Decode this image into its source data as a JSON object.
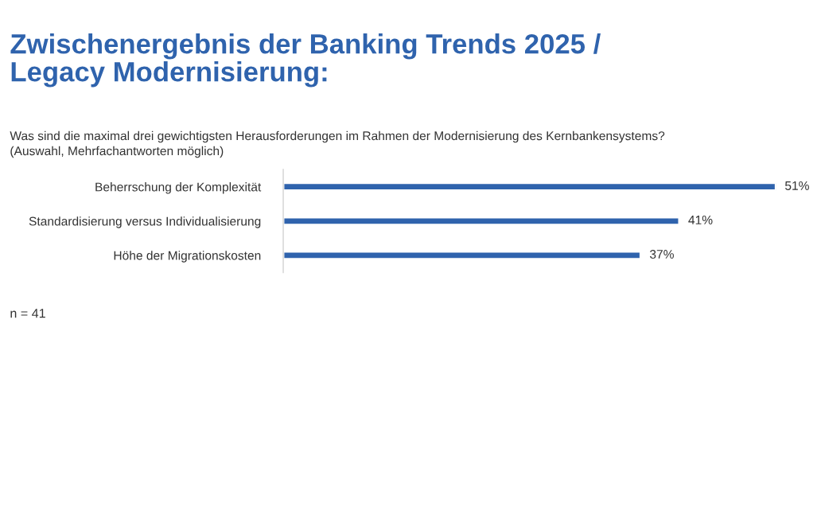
{
  "chart_data": {
    "type": "bar",
    "orientation": "horizontal",
    "title": "Zwischenergebnis der Banking Trends 2025 /\nLegacy Modernisierung:",
    "subtitle": "Was sind die maximal drei gewichtigsten Herausforderungen im Rahmen der Modernisierung des Kernbankensystems?\n(Auswahl, Mehrfachantworten möglich)",
    "categories": [
      "Beherrschung der Komplexität",
      "Standardisierung versus Individualisierung",
      "Höhe der Migrationskosten"
    ],
    "values": [
      51,
      41,
      37
    ],
    "value_labels": [
      "51%",
      "41%",
      "37%"
    ],
    "color": "#2f63ad",
    "annotations": [
      "n = 41"
    ],
    "grid": false,
    "legend": false
  }
}
